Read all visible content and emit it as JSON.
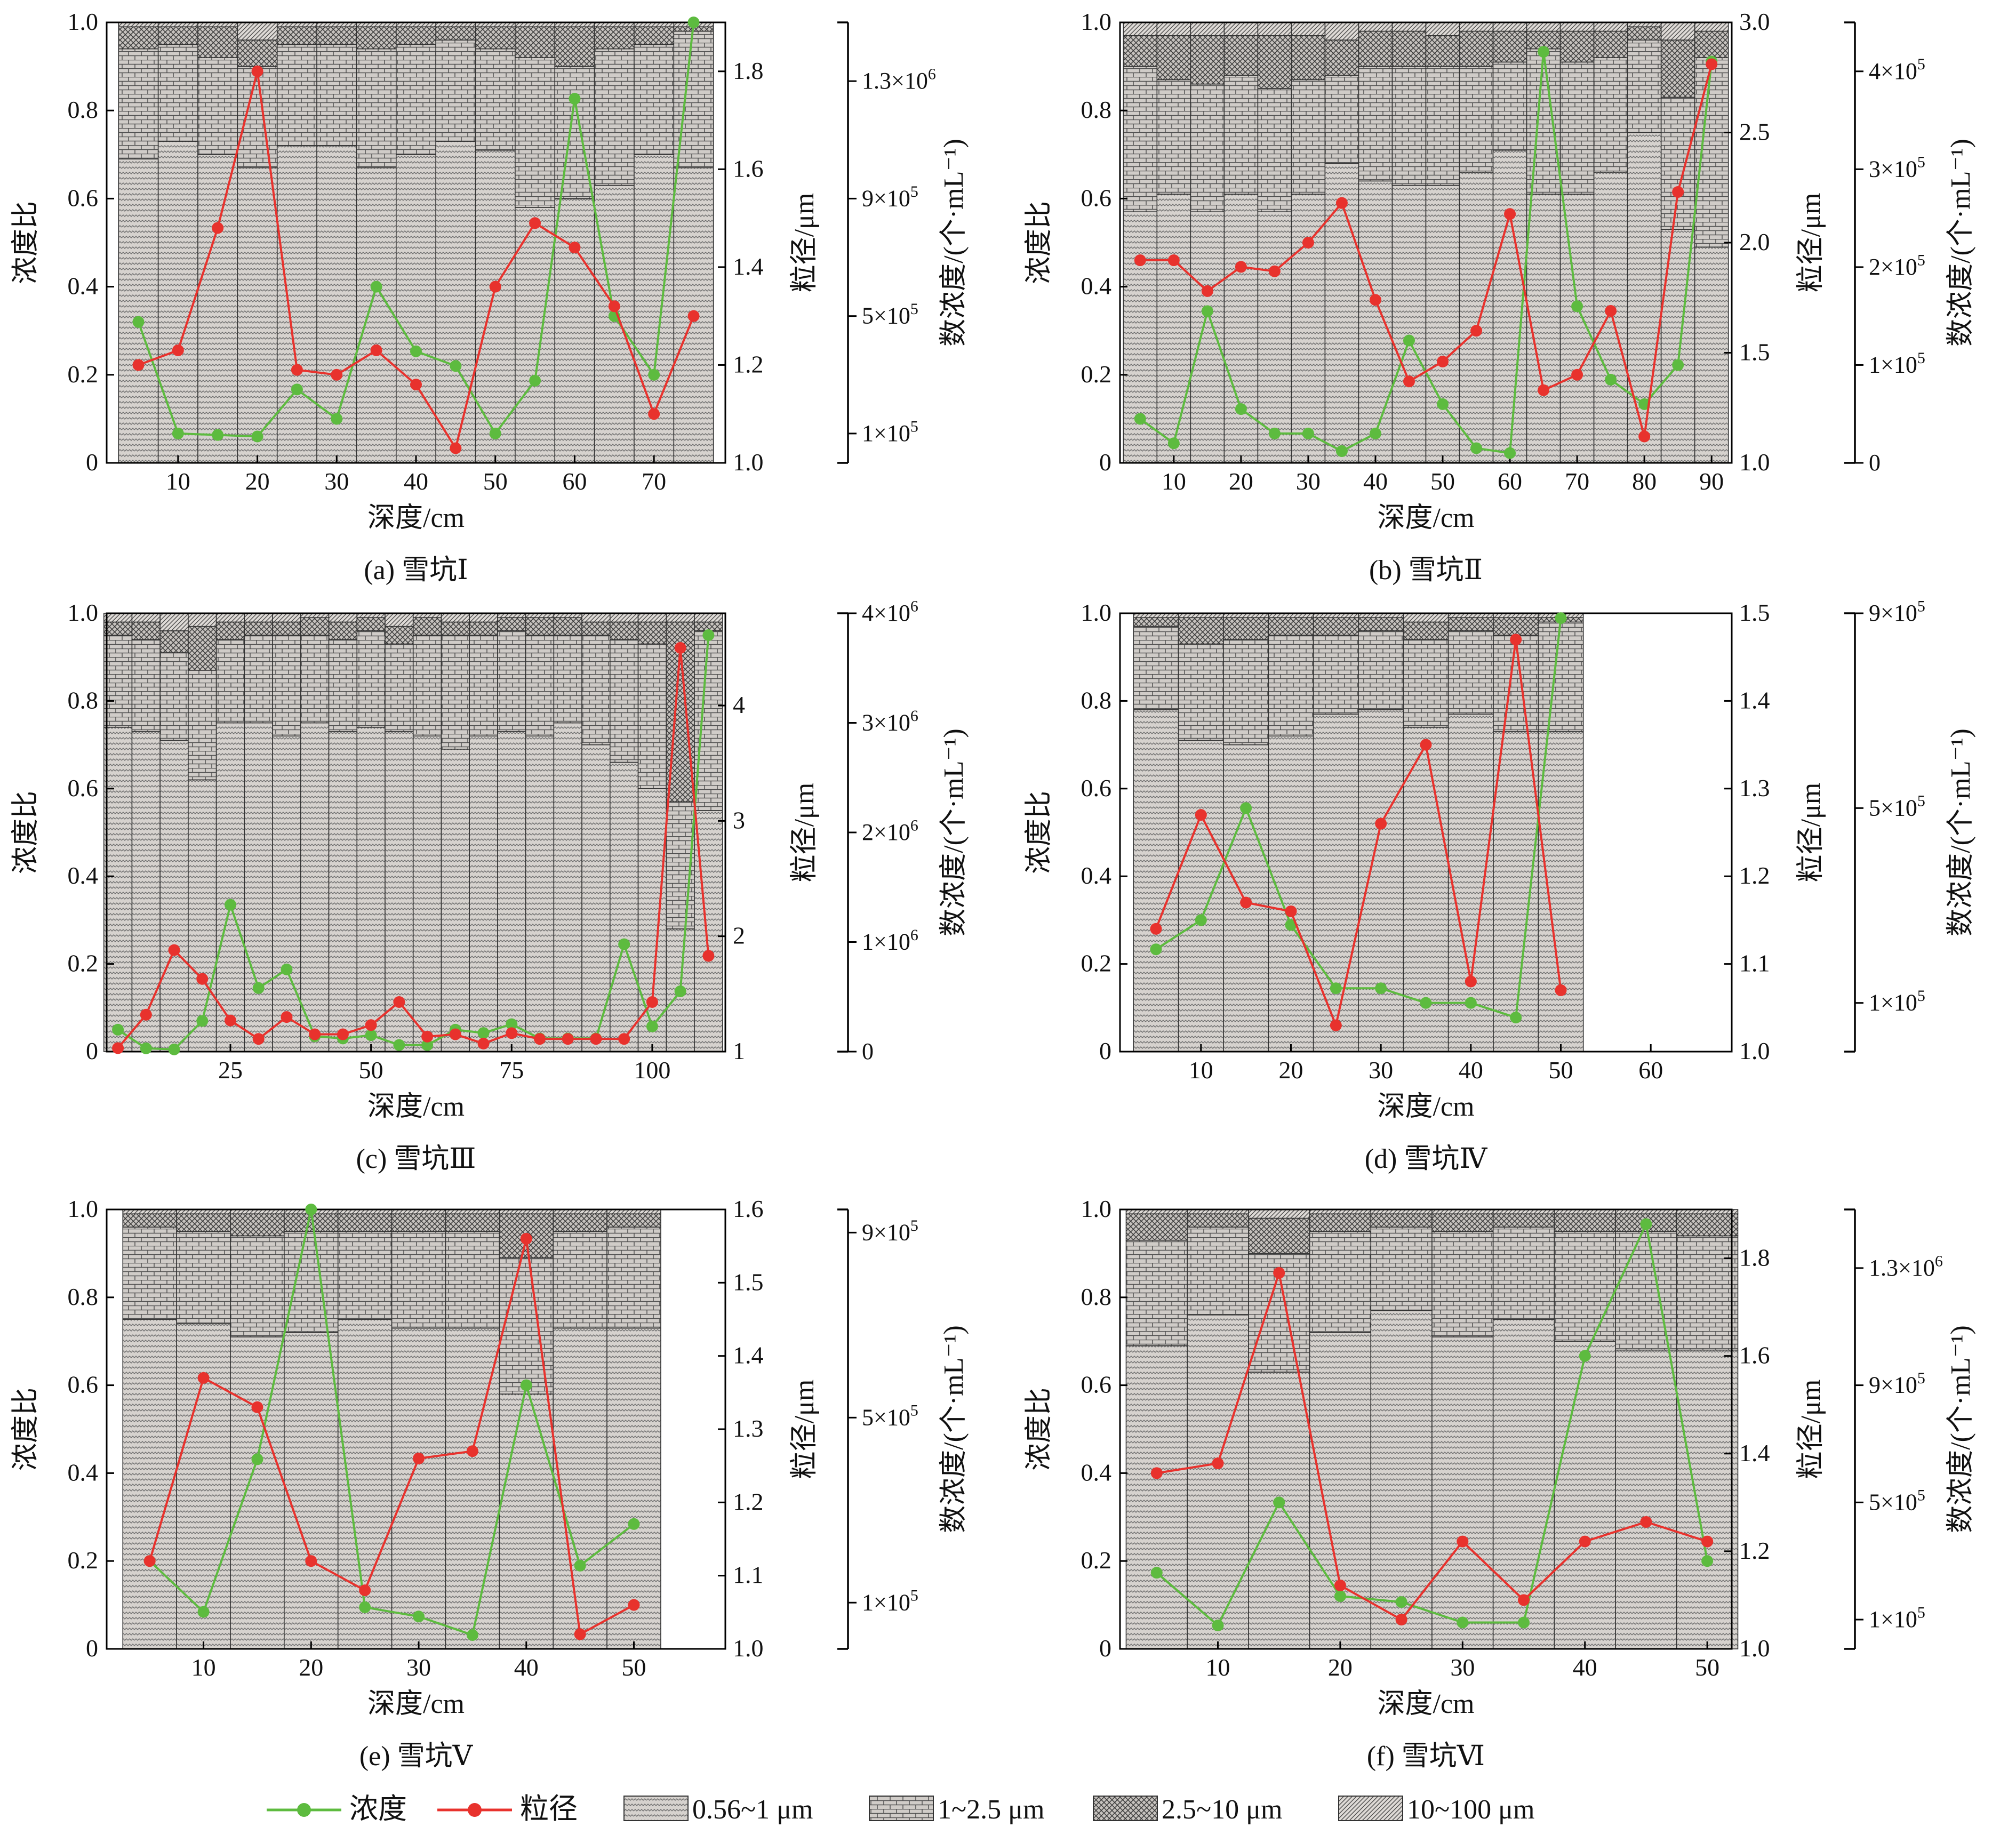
{
  "colors": {
    "conc_line": "#5dbb3f",
    "size_line": "#e8322d",
    "frame": "#000000",
    "bar_fill": "#d5d0cc"
  },
  "legend": {
    "conc_label": "浓度",
    "size_label": "粒径",
    "bins": [
      "0.56~1 μm",
      "1~2.5 μm",
      "2.5~10 μm",
      "10~100 μm"
    ]
  },
  "chart_data": [
    {
      "type": "bar+line",
      "panel_label": "(a) 雪坑Ⅰ",
      "xlabel": "深度/cm",
      "ylabel": "浓度比",
      "y2label": "粒径/μm",
      "y3label": "数浓度/(个·mL⁻¹)",
      "xlim": [
        1,
        79
      ],
      "xticks": [
        10,
        20,
        30,
        40,
        50,
        60,
        70
      ],
      "ylim": [
        0,
        1
      ],
      "yticks": [
        "0",
        "0.2",
        "0.4",
        "0.6",
        "0.8",
        "1.0"
      ],
      "y2lim": [
        1.0,
        1.9
      ],
      "y2ticks": [
        "1.0",
        "1.2",
        "1.4",
        "1.6",
        "1.8"
      ],
      "y3lim": [
        0,
        1500000
      ],
      "y3ticks": [
        {
          "v": 100000,
          "t": "1×10⁵"
        },
        {
          "v": 500000,
          "t": "5×10⁵"
        },
        {
          "v": 900000,
          "t": "9×10⁵"
        },
        {
          "v": 1300000,
          "t": "1.3×10⁶"
        }
      ],
      "depth": [
        5,
        10,
        15,
        20,
        25,
        30,
        35,
        40,
        45,
        50,
        55,
        60,
        65,
        70,
        75
      ],
      "stack_cum": [
        [
          0.69,
          0.94,
          0.99
        ],
        [
          0.73,
          0.95,
          0.99
        ],
        [
          0.7,
          0.92,
          0.99
        ],
        [
          0.67,
          0.9,
          0.96
        ],
        [
          0.72,
          0.95,
          0.99
        ],
        [
          0.72,
          0.95,
          0.99
        ],
        [
          0.67,
          0.94,
          0.99
        ],
        [
          0.7,
          0.95,
          0.99
        ],
        [
          0.73,
          0.96,
          0.99
        ],
        [
          0.71,
          0.94,
          0.99
        ],
        [
          0.58,
          0.92,
          0.99
        ],
        [
          0.6,
          0.9,
          0.99
        ],
        [
          0.63,
          0.94,
          0.99
        ],
        [
          0.7,
          0.95,
          0.99
        ],
        [
          0.67,
          0.98,
          0.99
        ]
      ],
      "size_um": [
        1.2,
        1.23,
        1.48,
        1.8,
        1.19,
        1.18,
        1.23,
        1.16,
        1.03,
        1.36,
        1.49,
        1.44,
        1.32,
        1.1,
        1.3
      ],
      "count_per_mL": [
        480000,
        100000,
        95000,
        90000,
        250000,
        150000,
        600000,
        380000,
        330000,
        100000,
        280000,
        1240000,
        500000,
        300000,
        1500000
      ]
    },
    {
      "type": "bar+line",
      "panel_label": "(b) 雪坑Ⅱ",
      "xlabel": "深度/cm",
      "ylabel": "浓度比",
      "y2label": "粒径/μm",
      "y3label": "数浓度/(个·mL⁻¹)",
      "xlim": [
        2,
        93
      ],
      "xticks": [
        10,
        20,
        30,
        40,
        50,
        60,
        70,
        80,
        90
      ],
      "ylim": [
        0,
        1
      ],
      "yticks": [
        "0",
        "0.2",
        "0.4",
        "0.6",
        "0.8",
        "1.0"
      ],
      "y2lim": [
        1.0,
        3.0
      ],
      "y2ticks": [
        "1.0",
        "1.5",
        "2.0",
        "2.5",
        "3.0"
      ],
      "y3lim": [
        0,
        450000
      ],
      "y3ticks": [
        {
          "v": 0,
          "t": "0"
        },
        {
          "v": 100000,
          "t": "1×10⁵"
        },
        {
          "v": 200000,
          "t": "2×10⁵"
        },
        {
          "v": 300000,
          "t": "3×10⁵"
        },
        {
          "v": 400000,
          "t": "4×10⁵"
        }
      ],
      "depth": [
        5,
        10,
        15,
        20,
        25,
        30,
        35,
        40,
        45,
        50,
        55,
        60,
        65,
        70,
        75,
        80,
        85,
        90
      ],
      "stack_cum": [
        [
          0.57,
          0.9,
          0.97
        ],
        [
          0.61,
          0.87,
          0.97
        ],
        [
          0.57,
          0.86,
          0.97
        ],
        [
          0.61,
          0.88,
          0.97
        ],
        [
          0.57,
          0.85,
          0.97
        ],
        [
          0.61,
          0.87,
          0.97
        ],
        [
          0.68,
          0.88,
          0.96
        ],
        [
          0.64,
          0.9,
          0.98
        ],
        [
          0.63,
          0.9,
          0.98
        ],
        [
          0.63,
          0.9,
          0.97
        ],
        [
          0.66,
          0.9,
          0.98
        ],
        [
          0.71,
          0.91,
          0.98
        ],
        [
          0.61,
          0.94,
          0.98
        ],
        [
          0.61,
          0.91,
          0.98
        ],
        [
          0.66,
          0.92,
          0.98
        ],
        [
          0.75,
          0.96,
          0.99
        ],
        [
          0.53,
          0.83,
          0.96
        ],
        [
          0.49,
          0.92,
          0.98
        ]
      ],
      "size_um": [
        1.92,
        1.92,
        1.78,
        1.89,
        1.87,
        2.0,
        2.18,
        1.74,
        1.37,
        1.46,
        1.6,
        2.13,
        1.33,
        1.4,
        1.69,
        1.12,
        2.23,
        2.81
      ],
      "count_per_mL": [
        45000,
        20000,
        155000,
        55000,
        30000,
        30000,
        12000,
        30000,
        125000,
        60000,
        15000,
        10000,
        420000,
        160000,
        85000,
        60000,
        100000,
        410000
      ]
    },
    {
      "type": "bar+line",
      "panel_label": "(c) 雪坑Ⅲ",
      "xlabel": "深度/cm",
      "ylabel": "浓度比",
      "y2label": "粒径/μm",
      "y3label": "数浓度/(个·mL⁻¹)",
      "xlim": [
        3,
        113
      ],
      "xticks": [
        25,
        50,
        75,
        100
      ],
      "ylim": [
        0,
        1
      ],
      "yticks": [
        "0",
        "0.2",
        "0.4",
        "0.6",
        "0.8",
        "1.0"
      ],
      "y2lim": [
        1,
        4.8
      ],
      "y2ticks": [
        "1",
        "2",
        "3",
        "4"
      ],
      "y3lim": [
        0,
        4000000
      ],
      "y3ticks": [
        {
          "v": 0,
          "t": "0"
        },
        {
          "v": 1000000,
          "t": "1×10⁶"
        },
        {
          "v": 2000000,
          "t": "2×10⁶"
        },
        {
          "v": 3000000,
          "t": "3×10⁶"
        },
        {
          "v": 4000000,
          "t": "4×10⁶"
        }
      ],
      "depth": [
        5,
        10,
        15,
        20,
        25,
        30,
        35,
        40,
        45,
        50,
        55,
        60,
        65,
        70,
        75,
        80,
        85,
        90,
        95,
        100,
        105,
        110
      ],
      "stack_cum": [
        [
          0.74,
          0.95,
          0.98
        ],
        [
          0.73,
          0.94,
          0.98
        ],
        [
          0.71,
          0.91,
          0.96
        ],
        [
          0.62,
          0.87,
          0.97
        ],
        [
          0.75,
          0.94,
          0.98
        ],
        [
          0.75,
          0.95,
          0.98
        ],
        [
          0.72,
          0.95,
          0.98
        ],
        [
          0.75,
          0.95,
          0.99
        ],
        [
          0.73,
          0.94,
          0.98
        ],
        [
          0.74,
          0.96,
          0.99
        ],
        [
          0.73,
          0.93,
          0.97
        ],
        [
          0.72,
          0.95,
          0.99
        ],
        [
          0.69,
          0.95,
          0.98
        ],
        [
          0.72,
          0.95,
          0.98
        ],
        [
          0.73,
          0.96,
          0.99
        ],
        [
          0.72,
          0.95,
          0.99
        ],
        [
          0.75,
          0.95,
          0.99
        ],
        [
          0.7,
          0.95,
          0.98
        ],
        [
          0.66,
          0.94,
          0.98
        ],
        [
          0.6,
          0.93,
          0.98
        ],
        [
          0.28,
          0.57,
          0.98
        ],
        [
          0.55,
          0.96,
          0.98
        ]
      ],
      "size_um": [
        1.03,
        1.32,
        1.88,
        1.63,
        1.27,
        1.11,
        1.3,
        1.15,
        1.15,
        1.23,
        1.43,
        1.13,
        1.15,
        1.07,
        1.16,
        1.11,
        1.11,
        1.11,
        1.11,
        1.43,
        4.5,
        1.83
      ],
      "count_per_mL": [
        200000,
        30000,
        20000,
        280000,
        1340000,
        580000,
        750000,
        140000,
        120000,
        150000,
        60000,
        60000,
        200000,
        170000,
        250000,
        120000,
        120000,
        120000,
        980000,
        230000,
        550000,
        3800000
      ]
    },
    {
      "type": "bar+line",
      "panel_label": "(d) 雪坑Ⅳ",
      "xlabel": "深度/cm",
      "ylabel": "浓度比",
      "y2label": "粒径/μm",
      "y3label": "数浓度/(个·mL⁻¹)",
      "xlim": [
        1,
        69
      ],
      "xticks": [
        10,
        20,
        30,
        40,
        50,
        60
      ],
      "ylim": [
        0,
        1
      ],
      "yticks": [
        "0",
        "0.2",
        "0.4",
        "0.6",
        "0.8",
        "1.0"
      ],
      "y2lim": [
        1.0,
        1.5
      ],
      "y2ticks": [
        "1.0",
        "1.1",
        "1.2",
        "1.3",
        "1.4",
        "1.5"
      ],
      "y3lim": [
        0,
        900000
      ],
      "y3ticks": [
        {
          "v": 100000,
          "t": "1×10⁵"
        },
        {
          "v": 500000,
          "t": "5×10⁵"
        },
        {
          "v": 900000,
          "t": "9×10⁵"
        }
      ],
      "depth": [
        5,
        10,
        15,
        20,
        25,
        30,
        35,
        40,
        45,
        50
      ],
      "stack_cum": [
        [
          0.78,
          0.97,
          0.99
        ],
        [
          0.71,
          0.93,
          0.99
        ],
        [
          0.7,
          0.94,
          0.99
        ],
        [
          0.72,
          0.95,
          0.99
        ],
        [
          0.77,
          0.95,
          0.99
        ],
        [
          0.78,
          0.96,
          0.99
        ],
        [
          0.74,
          0.94,
          0.98
        ],
        [
          0.77,
          0.96,
          0.99
        ],
        [
          0.73,
          0.95,
          0.99
        ],
        [
          0.73,
          0.98,
          0.99
        ]
      ],
      "size_um": [
        1.14,
        1.27,
        1.17,
        1.16,
        1.03,
        1.26,
        1.35,
        1.08,
        1.47,
        1.07
      ],
      "count_per_mL": [
        210000,
        270000,
        500000,
        260000,
        130000,
        130000,
        100000,
        100000,
        70000,
        890000
      ]
    },
    {
      "type": "bar+line",
      "panel_label": "(e) 雪坑Ⅴ",
      "xlabel": "深度/cm",
      "ylabel": "浓度比",
      "y2label": "粒径/μm",
      "y3label": "数浓度/(个·mL⁻¹)",
      "xlim": [
        1,
        58.5
      ],
      "xticks": [
        10,
        20,
        30,
        40,
        50
      ],
      "ylim": [
        0,
        1
      ],
      "yticks": [
        "0",
        "0.2",
        "0.4",
        "0.6",
        "0.8",
        "1.0"
      ],
      "y2lim": [
        1.0,
        1.6
      ],
      "y2ticks": [
        "1.0",
        "1.1",
        "1.2",
        "1.3",
        "1.4",
        "1.5",
        "1.6"
      ],
      "y3lim": [
        0,
        950000
      ],
      "y3ticks": [
        {
          "v": 100000,
          "t": "1×10⁵"
        },
        {
          "v": 500000,
          "t": "5×10⁵"
        },
        {
          "v": 900000,
          "t": "9×10⁵"
        }
      ],
      "depth": [
        5,
        10,
        15,
        20,
        25,
        30,
        35,
        40,
        45,
        50
      ],
      "stack_cum": [
        [
          0.75,
          0.96,
          0.99
        ],
        [
          0.74,
          0.95,
          0.99
        ],
        [
          0.71,
          0.94,
          0.99
        ],
        [
          0.72,
          0.95,
          0.99
        ],
        [
          0.75,
          0.95,
          0.99
        ],
        [
          0.73,
          0.95,
          0.99
        ],
        [
          0.73,
          0.95,
          0.99
        ],
        [
          0.58,
          0.89,
          0.99
        ],
        [
          0.73,
          0.95,
          0.99
        ],
        [
          0.73,
          0.96,
          0.99
        ]
      ],
      "size_um": [
        1.12,
        1.37,
        1.33,
        1.12,
        1.08,
        1.26,
        1.27,
        1.56,
        1.02,
        1.06
      ],
      "count_per_mL": [
        190000,
        80000,
        410000,
        950000,
        90000,
        70000,
        30000,
        570000,
        180000,
        270000
      ]
    },
    {
      "type": "bar+line",
      "panel_label": "(f) 雪坑Ⅵ",
      "xlabel": "深度/cm",
      "ylabel": "浓度比",
      "y2label": "粒径/μm",
      "y3label": "数浓度/(个·mL⁻¹)",
      "xlim": [
        2,
        52
      ],
      "xticks": [
        10,
        20,
        30,
        40,
        50
      ],
      "ylim": [
        0,
        1
      ],
      "yticks": [
        "0",
        "0.2",
        "0.4",
        "0.6",
        "0.8",
        "1.0"
      ],
      "y2lim": [
        1.0,
        1.9
      ],
      "y2ticks": [
        "1.0",
        "1.2",
        "1.4",
        "1.6",
        "1.8"
      ],
      "y3lim": [
        0,
        1500000
      ],
      "y3ticks": [
        {
          "v": 100000,
          "t": "1×10⁵"
        },
        {
          "v": 500000,
          "t": "5×10⁵"
        },
        {
          "v": 900000,
          "t": "9×10⁵"
        },
        {
          "v": 1300000,
          "t": "1.3×10⁶"
        }
      ],
      "depth": [
        5,
        10,
        15,
        20,
        25,
        30,
        35,
        40,
        45,
        50
      ],
      "stack_cum": [
        [
          0.69,
          0.93,
          0.99
        ],
        [
          0.76,
          0.96,
          0.99
        ],
        [
          0.63,
          0.9,
          0.98
        ],
        [
          0.72,
          0.95,
          0.99
        ],
        [
          0.77,
          0.96,
          0.99
        ],
        [
          0.71,
          0.95,
          0.99
        ],
        [
          0.75,
          0.96,
          0.99
        ],
        [
          0.7,
          0.95,
          0.99
        ],
        [
          0.68,
          0.95,
          0.99
        ],
        [
          0.68,
          0.94,
          0.99
        ]
      ],
      "size_um": [
        1.36,
        1.38,
        1.77,
        1.13,
        1.06,
        1.22,
        1.1,
        1.22,
        1.26,
        1.22
      ],
      "count_per_mL": [
        260000,
        80000,
        500000,
        180000,
        160000,
        90000,
        90000,
        1000000,
        1450000,
        300000
      ]
    }
  ]
}
